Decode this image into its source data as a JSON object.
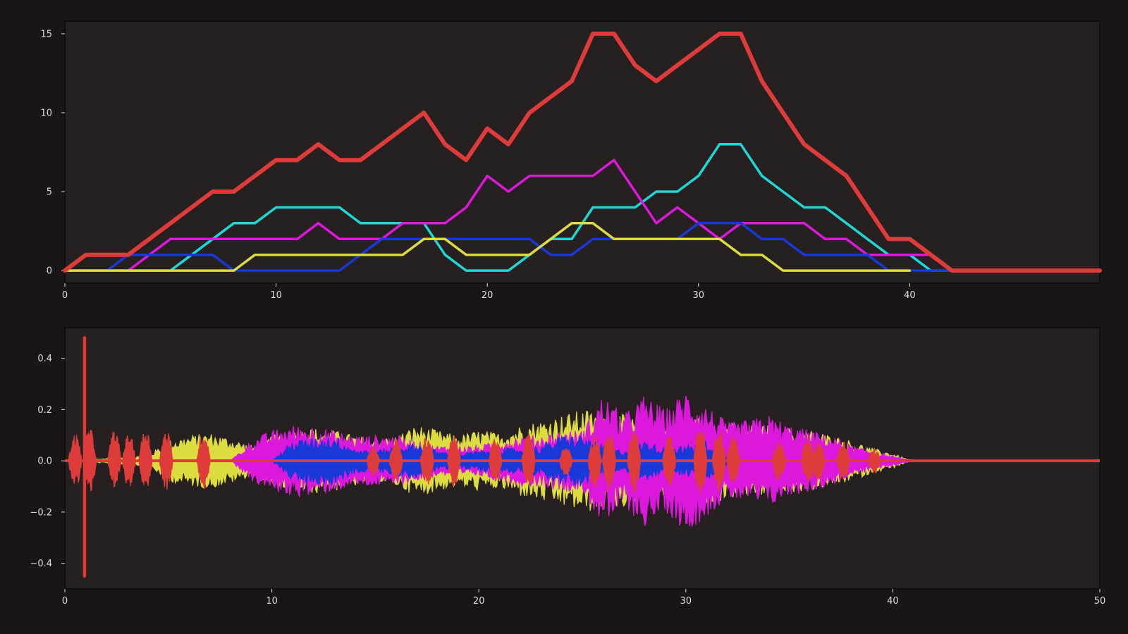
{
  "colors": {
    "background": "#1a1616",
    "plot_background": "#262020",
    "text": "#e2dcdc",
    "red": "#dd3c3a",
    "cyan": "#1ed8d8",
    "magenta": "#dc18dc",
    "blue": "#1838d8",
    "yellow": "#dcdc40"
  },
  "chart_data": [
    {
      "type": "line",
      "title": "",
      "xlabel": "",
      "ylabel": "",
      "xlim": [
        0,
        49
      ],
      "ylim": [
        -0.8,
        15.8
      ],
      "xticks": [
        0,
        10,
        20,
        30,
        40
      ],
      "yticks": [
        0,
        5,
        10,
        15
      ],
      "grid": false,
      "series": [
        {
          "color": "#dd3c3a",
          "width": 6,
          "x": [
            0,
            1,
            2,
            3,
            4,
            5,
            6,
            7,
            8,
            9,
            10,
            11,
            12,
            13,
            14,
            15,
            16,
            17,
            18,
            19,
            20,
            21,
            22,
            23,
            24,
            25,
            26,
            27,
            28,
            29,
            30,
            31,
            32,
            33,
            34,
            35,
            36,
            37,
            38,
            39,
            40,
            41,
            42,
            43,
            44,
            45,
            46,
            47,
            48,
            49
          ],
          "y": [
            0,
            1,
            1,
            1,
            2,
            3,
            4,
            5,
            5,
            6,
            7,
            7,
            8,
            7,
            7,
            8,
            9,
            10,
            8,
            7,
            9,
            8,
            10,
            11,
            12,
            15,
            15,
            13,
            12,
            13,
            14,
            15,
            15,
            12,
            10,
            8,
            7,
            6,
            4,
            2,
            2,
            1,
            0,
            0,
            0,
            0,
            0,
            0,
            0,
            0
          ]
        },
        {
          "color": "#1ed8d8",
          "width": 3.5,
          "x": [
            0,
            1,
            2,
            3,
            4,
            5,
            6,
            7,
            8,
            9,
            10,
            11,
            12,
            13,
            14,
            15,
            16,
            17,
            18,
            19,
            20,
            21,
            22,
            23,
            24,
            25,
            26,
            27,
            28,
            29,
            30,
            31,
            32,
            33,
            34,
            35,
            36,
            37,
            38,
            39,
            40,
            41,
            42
          ],
          "y": [
            0,
            0,
            0,
            0,
            0,
            0,
            1,
            2,
            3,
            3,
            4,
            4,
            4,
            4,
            3,
            3,
            3,
            3,
            1,
            0,
            0,
            0,
            1,
            2,
            2,
            4,
            4,
            4,
            5,
            5,
            6,
            8,
            8,
            6,
            5,
            4,
            4,
            3,
            2,
            1,
            1,
            0,
            0
          ]
        },
        {
          "color": "#dc18dc",
          "width": 3.5,
          "x": [
            0,
            1,
            2,
            3,
            4,
            5,
            6,
            7,
            8,
            9,
            10,
            11,
            12,
            13,
            14,
            15,
            16,
            17,
            18,
            19,
            20,
            21,
            22,
            23,
            24,
            25,
            26,
            27,
            28,
            29,
            30,
            31,
            32,
            33,
            34,
            35,
            36,
            37,
            38,
            39,
            40,
            41
          ],
          "y": [
            0,
            0,
            0,
            0,
            1,
            2,
            2,
            2,
            2,
            2,
            2,
            2,
            3,
            2,
            2,
            2,
            3,
            3,
            3,
            4,
            6,
            5,
            6,
            6,
            6,
            6,
            7,
            5,
            3,
            4,
            3,
            2,
            3,
            3,
            3,
            3,
            2,
            2,
            1,
            1,
            1,
            1
          ]
        },
        {
          "color": "#1838d8",
          "width": 3.5,
          "x": [
            0,
            1,
            2,
            3,
            4,
            5,
            6,
            7,
            8,
            9,
            10,
            11,
            12,
            13,
            14,
            15,
            16,
            17,
            18,
            19,
            20,
            21,
            22,
            23,
            24,
            25,
            26,
            27,
            28,
            29,
            30,
            31,
            32,
            33,
            34,
            35,
            36,
            37,
            38,
            39,
            40,
            41,
            42
          ],
          "y": [
            0,
            0,
            0,
            1,
            1,
            1,
            1,
            1,
            0,
            0,
            0,
            0,
            0,
            0,
            1,
            2,
            2,
            2,
            2,
            2,
            2,
            2,
            2,
            1,
            1,
            2,
            2,
            2,
            2,
            2,
            3,
            3,
            3,
            2,
            2,
            1,
            1,
            1,
            1,
            0,
            0,
            0,
            0
          ]
        },
        {
          "color": "#dcdc40",
          "width": 3.5,
          "x": [
            0,
            1,
            2,
            3,
            4,
            5,
            6,
            7,
            8,
            9,
            10,
            11,
            12,
            13,
            14,
            15,
            16,
            17,
            18,
            19,
            20,
            21,
            22,
            23,
            24,
            25,
            26,
            27,
            28,
            29,
            30,
            31,
            32,
            33,
            34,
            35,
            36,
            37,
            38,
            39,
            40
          ],
          "y": [
            0,
            0,
            0,
            0,
            0,
            0,
            0,
            0,
            0,
            1,
            1,
            1,
            1,
            1,
            1,
            1,
            1,
            2,
            2,
            1,
            1,
            1,
            1,
            2,
            3,
            3,
            2,
            2,
            2,
            2,
            2,
            2,
            1,
            1,
            0,
            0,
            0,
            0,
            0,
            0,
            0
          ]
        }
      ]
    },
    {
      "type": "area",
      "title": "",
      "xlabel": "",
      "ylabel": "",
      "xlim": [
        0,
        50
      ],
      "ylim": [
        -0.5,
        0.52
      ],
      "xticks": [
        0,
        10,
        20,
        30,
        40,
        50
      ],
      "yticks": [
        -0.4,
        -0.2,
        0.0,
        0.2,
        0.4
      ],
      "ytick_labels": [
        "−0.4",
        "−0.2",
        "0.0",
        "0.2",
        "0.4"
      ],
      "grid": false,
      "description_series": "waveform amplitude envelopes (symmetric about 0)",
      "series": [
        {
          "color": "#dcdc40",
          "x": [
            0,
            4,
            5,
            6,
            7,
            8,
            9,
            10,
            11,
            12,
            13,
            14,
            15,
            16,
            17,
            18,
            19,
            20,
            21,
            22,
            23,
            24,
            25,
            26,
            27,
            28,
            29,
            30,
            31,
            32,
            33,
            34,
            35,
            36,
            37,
            38,
            39,
            40,
            40.6,
            41,
            50
          ],
          "amp": [
            0,
            0.02,
            0.08,
            0.1,
            0.11,
            0.09,
            0.06,
            0.1,
            0.12,
            0.13,
            0.12,
            0.1,
            0.08,
            0.1,
            0.14,
            0.12,
            0.1,
            0.12,
            0.11,
            0.14,
            0.16,
            0.18,
            0.2,
            0.2,
            0.18,
            0.15,
            0.14,
            0.16,
            0.18,
            0.15,
            0.14,
            0.14,
            0.13,
            0.12,
            0.1,
            0.08,
            0.05,
            0.03,
            0.01,
            0,
            0
          ]
        },
        {
          "color": "#dc18dc",
          "x": [
            0,
            8,
            9,
            10,
            11,
            12,
            13,
            14,
            15,
            16,
            17,
            18,
            19,
            20,
            21,
            22,
            23,
            24,
            25,
            26,
            27,
            28,
            29,
            30,
            31,
            32,
            33,
            34,
            35,
            36,
            37,
            38,
            39,
            40,
            41,
            50
          ],
          "amp": [
            0,
            0,
            0.08,
            0.12,
            0.14,
            0.14,
            0.12,
            0.1,
            0.1,
            0.1,
            0.08,
            0.06,
            0.06,
            0.06,
            0.08,
            0.1,
            0.1,
            0.12,
            0.12,
            0.26,
            0.18,
            0.26,
            0.2,
            0.28,
            0.22,
            0.15,
            0.16,
            0.18,
            0.14,
            0.12,
            0.1,
            0.06,
            0.04,
            0.02,
            0,
            0
          ]
        },
        {
          "color": "#1838d8",
          "x": [
            0,
            10,
            11,
            12,
            13,
            14,
            15,
            16,
            17,
            18,
            19,
            20,
            21,
            22,
            23,
            24,
            25,
            26,
            27,
            28,
            29,
            30,
            31,
            32,
            33,
            34,
            50
          ],
          "amp": [
            0,
            0,
            0.08,
            0.09,
            0.1,
            0.05,
            0.04,
            0.06,
            0.07,
            0.04,
            0.03,
            0.04,
            0.05,
            0.05,
            0.06,
            0.1,
            0.1,
            0.06,
            0.04,
            0.08,
            0.05,
            0.06,
            0.08,
            0.02,
            0,
            0,
            0
          ]
        },
        {
          "color": "#dd3c3a",
          "bursts": [
            [
              0.5,
              0.11
            ],
            [
              1.2,
              0.13
            ],
            [
              2.4,
              0.12
            ],
            [
              3.1,
              0.11
            ],
            [
              3.9,
              0.13
            ],
            [
              4.9,
              0.12
            ],
            [
              6.7,
              0.12
            ],
            [
              14.9,
              0.06
            ],
            [
              16.0,
              0.09
            ],
            [
              17.5,
              0.1
            ],
            [
              18.8,
              0.1
            ],
            [
              20.8,
              0.09
            ],
            [
              22.4,
              0.11
            ],
            [
              24.2,
              0.06
            ],
            [
              25.6,
              0.11
            ],
            [
              26.3,
              0.12
            ],
            [
              27.5,
              0.13
            ],
            [
              29.2,
              0.1
            ],
            [
              30.7,
              0.15
            ],
            [
              31.6,
              0.13
            ],
            [
              32.3,
              0.1
            ],
            [
              34.5,
              0.08
            ],
            [
              35.9,
              0.1
            ],
            [
              36.4,
              0.08
            ],
            [
              37.6,
              0.08
            ],
            [
              39.1,
              0.05
            ]
          ],
          "spike": {
            "x": 0.95,
            "max": 0.48,
            "min": -0.45
          }
        }
      ]
    }
  ]
}
